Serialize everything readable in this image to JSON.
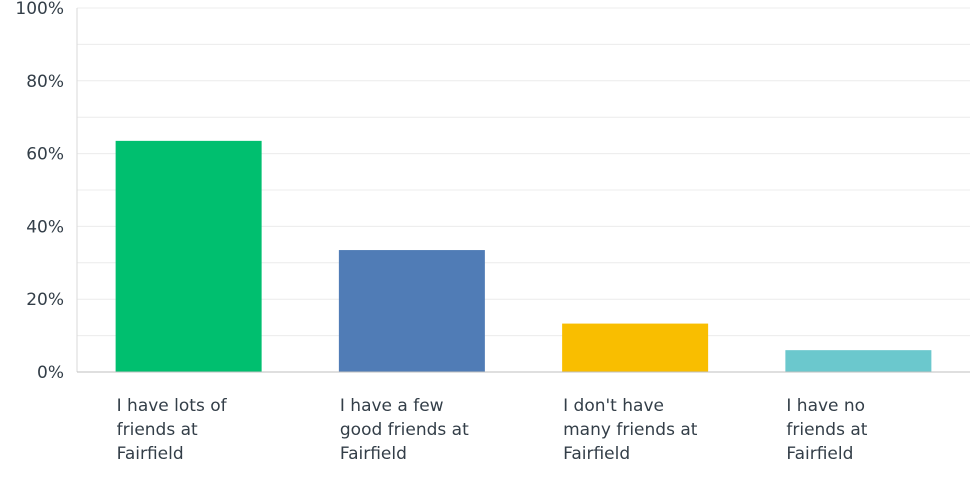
{
  "chart_data": {
    "type": "bar",
    "categories": [
      "I have lots of\nfriends at\nFairfield",
      "I have a few\ngood friends at\nFairfield",
      "I don't have\nmany friends at\nFairfield",
      "I have no\nfriends at\nFairfield"
    ],
    "values": [
      63.5,
      33.5,
      13.3,
      6.0
    ],
    "colors": [
      "#00bf6f",
      "#507cb6",
      "#f9be00",
      "#6bc8cd"
    ],
    "ylim": [
      0,
      100
    ],
    "yticks": [
      "0%",
      "20%",
      "40%",
      "60%",
      "80%",
      "100%"
    ],
    "grid": true
  }
}
